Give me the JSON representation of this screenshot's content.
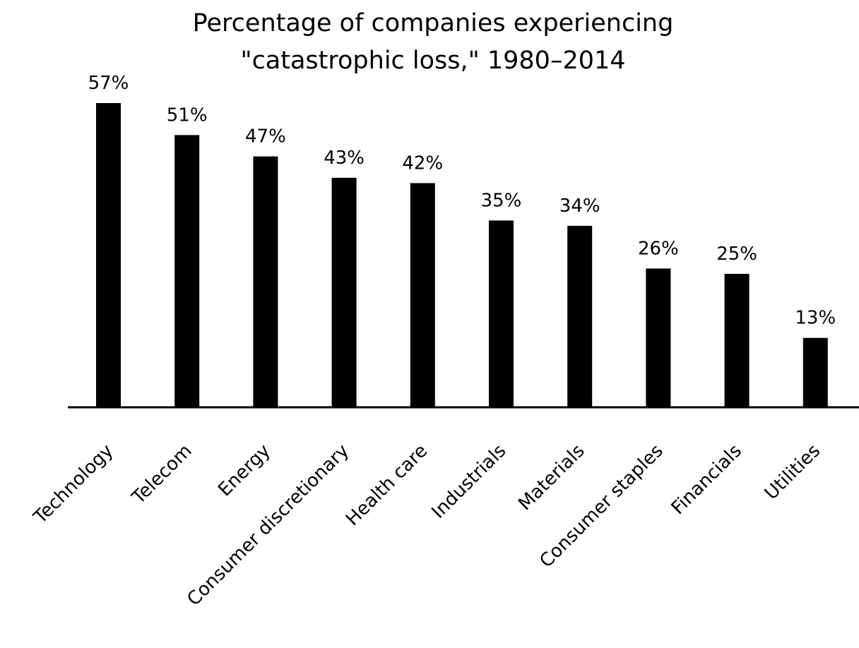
{
  "chart_data": {
    "type": "bar",
    "title_lines": [
      "Percentage of companies experiencing",
      "\"catastrophic loss,\" 1980–2014"
    ],
    "categories": [
      "Technology",
      "Telecom",
      "Energy",
      "Consumer discretionary",
      "Health care",
      "Industrials",
      "Materials",
      "Consumer staples",
      "Financials",
      "Utilities"
    ],
    "values": [
      57,
      51,
      47,
      43,
      42,
      35,
      34,
      26,
      25,
      13
    ],
    "value_labels": [
      "57%",
      "51%",
      "47%",
      "43%",
      "42%",
      "35%",
      "34%",
      "26%",
      "25%",
      "13%"
    ],
    "unit": "%",
    "xlabel": "",
    "ylabel": "",
    "ylim": [
      0,
      57
    ],
    "y_axis_visible": false,
    "grid": false,
    "legend": "none",
    "colors": {
      "bar": "#000000",
      "axis": "#000000",
      "text": "#000000",
      "background": "#ffffff"
    }
  }
}
